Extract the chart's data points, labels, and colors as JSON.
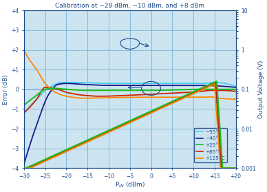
{
  "title": "Calibration at −28 dBm, −10 dBm, and +8 dBm",
  "xlabel": "Pᴵₙ (dBm)",
  "ylabel_left": "Error (dB)",
  "ylabel_right": "Output Voltage (V)",
  "xlim": [
    -30,
    20
  ],
  "ylim_left": [
    -4,
    4
  ],
  "x_ticks": [
    -30,
    -25,
    -20,
    -15,
    -10,
    -5,
    0,
    5,
    10,
    15,
    20
  ],
  "x_tick_labels": [
    "−30",
    "−25",
    "−20",
    "−15",
    "−10",
    "−5",
    "0",
    "+5",
    "+10",
    "+15",
    "+20"
  ],
  "y_ticks_left": [
    -4,
    -3,
    -2,
    -1,
    0,
    1,
    2,
    3,
    4
  ],
  "y_tick_labels_left": [
    "−4",
    "−3",
    "−2",
    "−1",
    "0",
    "+1",
    "+2",
    "+3",
    "+4"
  ],
  "background_color": "#cce4f0",
  "grid_color": "#5599cc",
  "axis_color": "#1a4a8a",
  "colors": {
    "m55": "#44ccee",
    "m40": "#1a1a88",
    "p25": "#22bb22",
    "p85": "#cc2200",
    "p125": "#ff8800"
  },
  "legend_labels": [
    "−55°C",
    "−40°C",
    "+25°C",
    "+85°C",
    "+125°C"
  ],
  "legend_colors": [
    "#44ccee",
    "#1a1a88",
    "#22bb22",
    "#cc2200",
    "#ff8800"
  ],
  "lw": 1.3
}
